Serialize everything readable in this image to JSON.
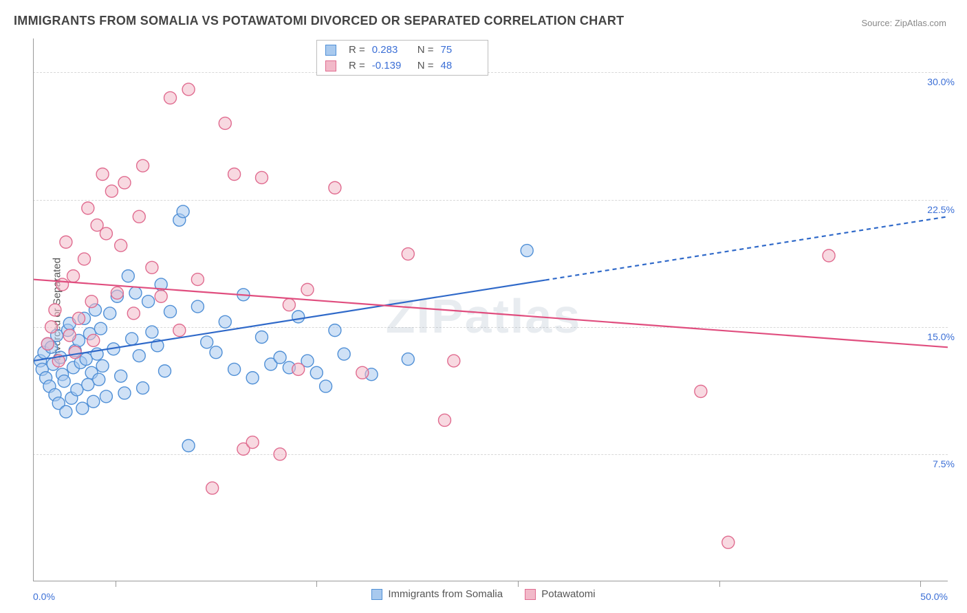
{
  "title": "IMMIGRANTS FROM SOMALIA VS POTAWATOMI DIVORCED OR SEPARATED CORRELATION CHART",
  "source_label": "Source: ",
  "source_name": "ZipAtlas.com",
  "watermark": "ZIPatlas",
  "y_axis_label": "Divorced or Separated",
  "chart": {
    "type": "scatter",
    "xlim": [
      0,
      50
    ],
    "ylim": [
      0,
      32
    ],
    "x_tick_positions": [
      4.5,
      15.5,
      26.5,
      37.5,
      48.5
    ],
    "x_label_min": "0.0%",
    "x_label_max": "50.0%",
    "y_grid": [
      7.5,
      15.0,
      22.5,
      30.0
    ],
    "y_tick_labels": [
      "7.5%",
      "15.0%",
      "22.5%",
      "30.0%"
    ],
    "background_color": "#ffffff",
    "grid_color": "#d8d8d8",
    "axis_color": "#999999",
    "marker_radius": 9,
    "marker_stroke_width": 1.4,
    "line_width": 2.2,
    "dash_pattern": "6,5"
  },
  "series": [
    {
      "name": "Immigrants from Somalia",
      "fill": "#a8c9ee",
      "stroke": "#4f8fd6",
      "line_color": "#2f69c9",
      "R": "0.283",
      "N": "75",
      "trend": {
        "y_at_x0": 13.0,
        "y_at_x50": 21.5,
        "solid_until_x": 28
      },
      "points": [
        [
          0.4,
          13.0
        ],
        [
          0.5,
          12.5
        ],
        [
          0.6,
          13.5
        ],
        [
          0.7,
          12.0
        ],
        [
          0.8,
          14.0
        ],
        [
          0.9,
          11.5
        ],
        [
          1.0,
          13.8
        ],
        [
          1.1,
          12.8
        ],
        [
          1.2,
          11.0
        ],
        [
          1.3,
          14.5
        ],
        [
          1.4,
          10.5
        ],
        [
          1.5,
          13.2
        ],
        [
          1.6,
          12.2
        ],
        [
          1.7,
          11.8
        ],
        [
          1.8,
          10.0
        ],
        [
          1.9,
          14.8
        ],
        [
          2.0,
          15.2
        ],
        [
          2.1,
          10.8
        ],
        [
          2.2,
          12.6
        ],
        [
          2.3,
          13.6
        ],
        [
          2.4,
          11.3
        ],
        [
          2.5,
          14.2
        ],
        [
          2.6,
          12.9
        ],
        [
          2.7,
          10.2
        ],
        [
          2.8,
          15.5
        ],
        [
          2.9,
          13.1
        ],
        [
          3.0,
          11.6
        ],
        [
          3.1,
          14.6
        ],
        [
          3.2,
          12.3
        ],
        [
          3.3,
          10.6
        ],
        [
          3.4,
          16.0
        ],
        [
          3.5,
          13.4
        ],
        [
          3.6,
          11.9
        ],
        [
          3.7,
          14.9
        ],
        [
          3.8,
          12.7
        ],
        [
          4.0,
          10.9
        ],
        [
          4.2,
          15.8
        ],
        [
          4.4,
          13.7
        ],
        [
          4.6,
          16.8
        ],
        [
          4.8,
          12.1
        ],
        [
          5.0,
          11.1
        ],
        [
          5.2,
          18.0
        ],
        [
          5.4,
          14.3
        ],
        [
          5.6,
          17.0
        ],
        [
          5.8,
          13.3
        ],
        [
          6.0,
          11.4
        ],
        [
          6.3,
          16.5
        ],
        [
          6.5,
          14.7
        ],
        [
          6.8,
          13.9
        ],
        [
          7.0,
          17.5
        ],
        [
          7.2,
          12.4
        ],
        [
          7.5,
          15.9
        ],
        [
          8.0,
          21.3
        ],
        [
          8.2,
          21.8
        ],
        [
          8.5,
          8.0
        ],
        [
          9.0,
          16.2
        ],
        [
          9.5,
          14.1
        ],
        [
          10.0,
          13.5
        ],
        [
          10.5,
          15.3
        ],
        [
          11.0,
          12.5
        ],
        [
          11.5,
          16.9
        ],
        [
          12.0,
          12.0
        ],
        [
          12.5,
          14.4
        ],
        [
          13.0,
          12.8
        ],
        [
          13.5,
          13.2
        ],
        [
          14.0,
          12.6
        ],
        [
          14.5,
          15.6
        ],
        [
          15.0,
          13.0
        ],
        [
          15.5,
          12.3
        ],
        [
          16.0,
          11.5
        ],
        [
          16.5,
          14.8
        ],
        [
          17.0,
          13.4
        ],
        [
          18.5,
          12.2
        ],
        [
          20.5,
          13.1
        ],
        [
          27.0,
          19.5
        ]
      ]
    },
    {
      "name": "Potawatomi",
      "fill": "#f2b9c9",
      "stroke": "#e06b8f",
      "line_color": "#e04d7e",
      "R": "-0.139",
      "N": "48",
      "trend": {
        "y_at_x0": 17.8,
        "y_at_x50": 13.8,
        "solid_until_x": 50
      },
      "points": [
        [
          0.8,
          14.0
        ],
        [
          1.0,
          15.0
        ],
        [
          1.2,
          16.0
        ],
        [
          1.4,
          13.0
        ],
        [
          1.6,
          17.5
        ],
        [
          1.8,
          20.0
        ],
        [
          2.0,
          14.5
        ],
        [
          2.2,
          18.0
        ],
        [
          2.5,
          15.5
        ],
        [
          2.8,
          19.0
        ],
        [
          3.0,
          22.0
        ],
        [
          3.2,
          16.5
        ],
        [
          3.5,
          21.0
        ],
        [
          3.8,
          24.0
        ],
        [
          4.0,
          20.5
        ],
        [
          4.3,
          23.0
        ],
        [
          4.6,
          17.0
        ],
        [
          5.0,
          23.5
        ],
        [
          5.5,
          15.8
        ],
        [
          6.0,
          24.5
        ],
        [
          6.5,
          18.5
        ],
        [
          7.0,
          16.8
        ],
        [
          7.5,
          28.5
        ],
        [
          8.0,
          14.8
        ],
        [
          8.5,
          29.0
        ],
        [
          9.0,
          17.8
        ],
        [
          9.8,
          5.5
        ],
        [
          10.5,
          27.0
        ],
        [
          11.0,
          24.0
        ],
        [
          11.5,
          7.8
        ],
        [
          12.0,
          8.2
        ],
        [
          12.5,
          23.8
        ],
        [
          13.5,
          7.5
        ],
        [
          14.0,
          16.3
        ],
        [
          14.5,
          12.5
        ],
        [
          15.0,
          17.2
        ],
        [
          16.5,
          23.2
        ],
        [
          18.0,
          12.3
        ],
        [
          20.5,
          19.3
        ],
        [
          22.5,
          9.5
        ],
        [
          23.0,
          13.0
        ],
        [
          36.5,
          11.2
        ],
        [
          38.0,
          2.3
        ],
        [
          43.5,
          19.2
        ],
        [
          2.3,
          13.5
        ],
        [
          3.3,
          14.2
        ],
        [
          4.8,
          19.8
        ],
        [
          5.8,
          21.5
        ]
      ]
    }
  ],
  "stats_labels": {
    "R": "R = ",
    "N": "N = "
  },
  "legend_bottom": [
    {
      "label": "Immigrants from Somalia",
      "fill": "#a8c9ee",
      "stroke": "#4f8fd6"
    },
    {
      "label": "Potawatomi",
      "fill": "#f2b9c9",
      "stroke": "#e06b8f"
    }
  ]
}
